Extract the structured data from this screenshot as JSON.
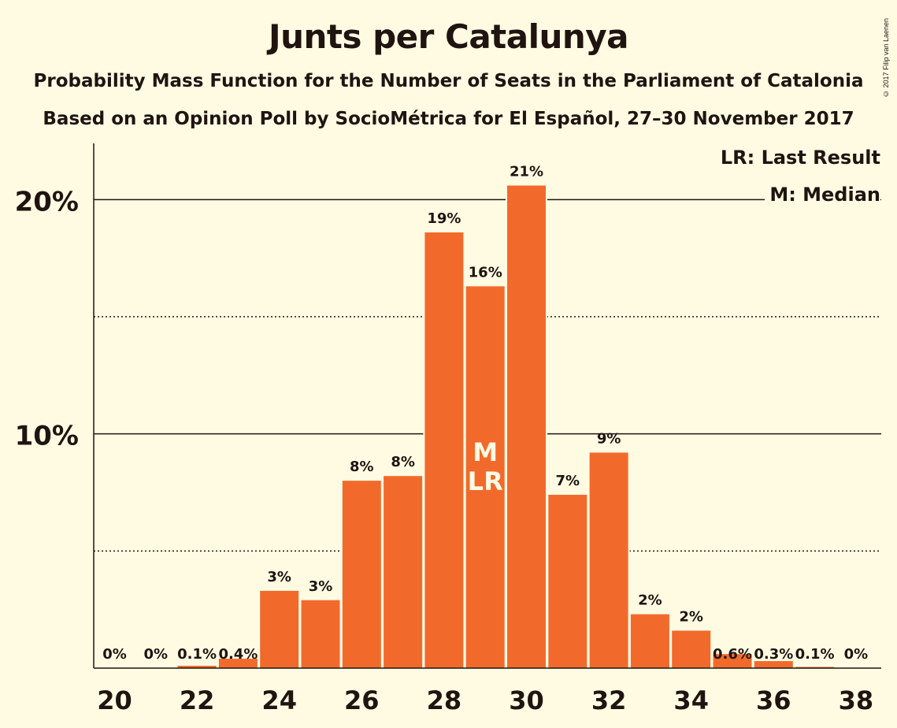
{
  "copyright": "© 2017 Filip van Laenen",
  "legend": {
    "last_result": "LR: Last Result",
    "median": "M: Median"
  },
  "colors": {
    "bar": "#F26A2B",
    "background": "#FFFBE3",
    "text": "#1F1410",
    "marker_text": "#FFFBE3"
  },
  "chart_data": {
    "type": "bar",
    "title": "Junts per Catalunya",
    "subtitle": [
      "Probability Mass Function for the Number of Seats in the Parliament of Catalonia",
      "Based on an Opinion Poll by SocioMétrica for El Español, 27–30 November 2017"
    ],
    "x": [
      20,
      21,
      22,
      23,
      24,
      25,
      26,
      27,
      28,
      29,
      30,
      31,
      32,
      33,
      34,
      35,
      36,
      37,
      38
    ],
    "values": [
      0,
      0,
      0.1,
      0.4,
      3.3,
      2.9,
      8.0,
      8.2,
      18.6,
      16.3,
      20.6,
      7.4,
      9.2,
      2.3,
      1.6,
      0.6,
      0.3,
      0.05,
      0
    ],
    "data_labels": [
      "0%",
      "0%",
      "0.1%",
      "0.4%",
      "3%",
      "3%",
      "8%",
      "8%",
      "19%",
      "16%",
      "21%",
      "7%",
      "9%",
      "2%",
      "2%",
      "0.6%",
      "0.3%",
      "0.1%",
      "0%"
    ],
    "x_tick_labels": [
      "20",
      "22",
      "24",
      "26",
      "28",
      "30",
      "32",
      "34",
      "36",
      "38"
    ],
    "y_ticks": [
      10,
      20
    ],
    "y_tick_labels": [
      "10%",
      "20%"
    ],
    "y_minor_gridlines": [
      5,
      15
    ],
    "ylim": [
      0,
      22.4
    ],
    "median_seat": 29,
    "last_result_seat": 29,
    "median_label": "M",
    "last_result_label": "LR",
    "grid": true,
    "legend_placement": "top-right"
  }
}
